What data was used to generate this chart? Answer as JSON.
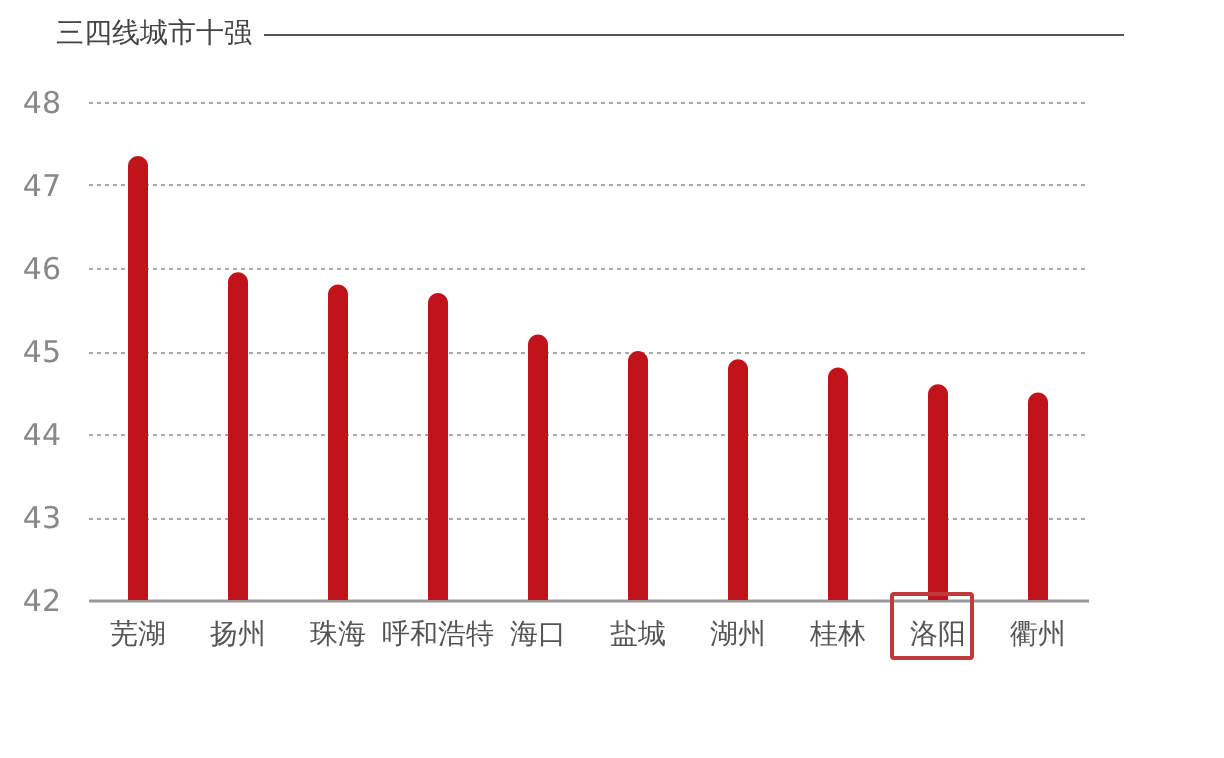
{
  "chart_data": {
    "type": "bar",
    "title": "三四线城市十强",
    "categories": [
      "芜湖",
      "扬州",
      "珠海",
      "呼和浩特",
      "海口",
      "盐城",
      "湖州",
      "桂林",
      "洛阳",
      "衢州"
    ],
    "values": [
      47.35,
      45.95,
      45.8,
      45.7,
      45.2,
      45.0,
      44.9,
      44.8,
      44.6,
      44.5
    ],
    "color": "#c0141a",
    "ylim": [
      42,
      48
    ],
    "yticks": [
      42,
      43,
      44,
      45,
      46,
      47,
      48
    ],
    "grid": "y"
  }
}
